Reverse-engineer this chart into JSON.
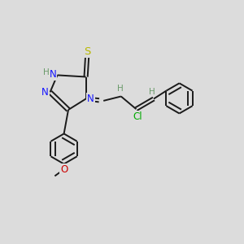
{
  "bg_color": "#dcdcdc",
  "bond_color": "#1a1a1a",
  "n_color": "#1414ff",
  "s_color": "#b8b800",
  "o_color": "#cc0000",
  "cl_color": "#00aa00",
  "h_color": "#6a9a6a",
  "figsize": [
    3.0,
    3.0
  ],
  "dpi": 100,
  "xlim": [
    0,
    10
  ],
  "ylim": [
    0,
    10
  ]
}
